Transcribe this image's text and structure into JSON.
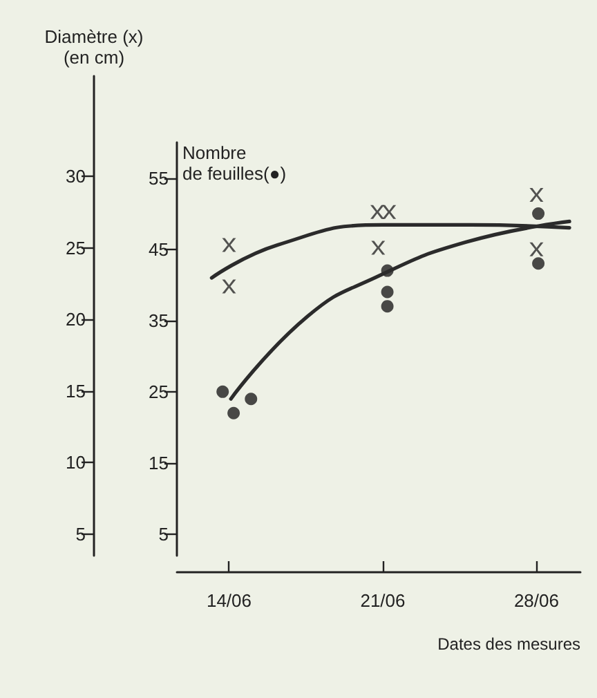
{
  "chart_data": {
    "type": "scatter",
    "xlabel": "Dates des mesures",
    "ylabel": "Nombre\nde feuilles(●)",
    "y2label": "Diamètre (x)\n(en cm)",
    "xlim": [
      "--06-11T15:00",
      "--06-30"
    ],
    "xticks": [
      {
        "value": "--06-14",
        "label": "14/06"
      },
      {
        "value": "--06-21",
        "label": "21/06"
      },
      {
        "value": "--06-28",
        "label": "28/06"
      }
    ],
    "ylim": [
      2,
      60
    ],
    "yticks": [
      5,
      15,
      25,
      35,
      45,
      55
    ],
    "y2lim": [
      3.5,
      37
    ],
    "y2ticks": [
      5,
      10,
      15,
      20,
      25,
      30
    ],
    "grid": false,
    "series": [
      {
        "axis": "y2",
        "marker": "cross",
        "color": "#2b2b2b",
        "x": [
          "--06-14",
          "--06-14",
          "--06-20T18:00",
          "--06-21T07:00",
          "--06-20T19:00",
          "--06-28",
          "--06-28"
        ],
        "values": [
          25.2,
          22.3,
          27.5,
          27.5,
          25.0,
          28.7,
          24.9
        ]
      },
      {
        "marker": "circle",
        "color": "#1e1e1e",
        "x": [
          "--06-13T17:00",
          "--06-14T05:00",
          "--06-15",
          "--06-21T05:00",
          "--06-21T05:00",
          "--06-21T05:00",
          "--06-28T02:00",
          "--06-28T02:00"
        ],
        "values": [
          25,
          22,
          24,
          42,
          39,
          37,
          50,
          43
        ]
      },
      {
        "type": "line",
        "axis": "y2",
        "marker": "none",
        "line_style": "solid",
        "color": "#2b2b2b",
        "x": [
          "--06-13T05:00",
          "--06-16T05:00",
          "--06-21",
          "--06-25",
          "--06-29T12:00"
        ],
        "values": [
          22.9,
          25.2,
          26.6,
          26.6,
          26.4
        ]
      },
      {
        "type": "line",
        "marker": "none",
        "line_style": "solid",
        "color": "#2b2b2b",
        "x": [
          "--06-14T02:00",
          "--06-17T14:00",
          "--06-20T17:00",
          "--06-24T19:00",
          "--06-29T12:00"
        ],
        "values": [
          24.0,
          35.6,
          41.1,
          46.0,
          48.9
        ]
      }
    ]
  }
}
